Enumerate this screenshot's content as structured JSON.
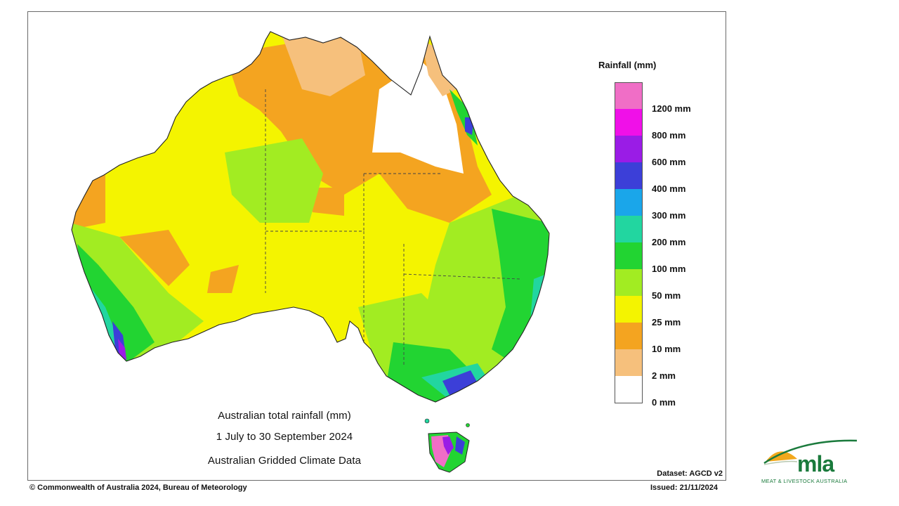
{
  "map": {
    "title_line1": "Australian total rainfall (mm)",
    "title_line2": "1 July to 30 September 2024",
    "title_line3": "Australian Gridded Climate Data",
    "dataset": "Dataset: AGCD v2",
    "region": "Australia"
  },
  "legend": {
    "title": "Rainfall (mm)",
    "swatches": [
      "#f06ec6",
      "#f010e8",
      "#9a1ce6",
      "#3c3fd8",
      "#1aa6ea",
      "#22d6a0",
      "#22d432",
      "#a2ec22",
      "#f4f400",
      "#f4a420",
      "#f6c07c",
      "#ffffff"
    ],
    "labels": [
      "1200 mm",
      "800 mm",
      "600 mm",
      "400 mm",
      "300 mm",
      "200 mm",
      "100 mm",
      "50 mm",
      "25 mm",
      "10 mm",
      "2 mm",
      "0 mm"
    ]
  },
  "footer": {
    "copyright": "© Commonwealth of Australia 2024, Bureau of Meteorology",
    "issued": "Issued: 21/11/2024"
  },
  "logo": {
    "text": "mla",
    "subtitle": "MEAT & LIVESTOCK AUSTRALIA",
    "colors": {
      "sun": "#f2a81c",
      "green": "#1a7a3c"
    }
  }
}
